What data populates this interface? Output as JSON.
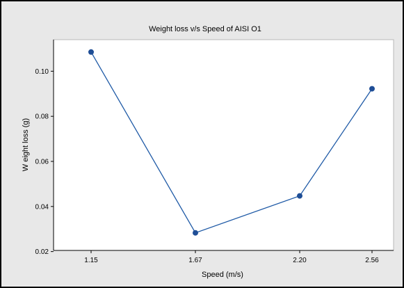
{
  "chart_data": {
    "type": "line",
    "title": "Weight loss v/s Speed of AISI O1",
    "xlabel": "Speed (m/s)",
    "ylabel": "W eight loss (g)",
    "categories": [
      "1.15",
      "1.67",
      "2.20",
      "2.56"
    ],
    "x": [
      1.15,
      1.67,
      2.2,
      2.56
    ],
    "series": [
      {
        "values": [
          0.1085,
          0.0283,
          0.0447,
          0.0922
        ]
      }
    ],
    "ylim": [
      0.0205,
      0.114
    ],
    "yticks": [
      "0.02",
      "0.04",
      "0.06",
      "0.08",
      "0.10"
    ],
    "grid": false,
    "colors": {
      "line": "#1f5aa6",
      "marker": "#1f4e96",
      "plot_bg": "#ffffff",
      "figure_bg": "#e8e8e8"
    }
  }
}
